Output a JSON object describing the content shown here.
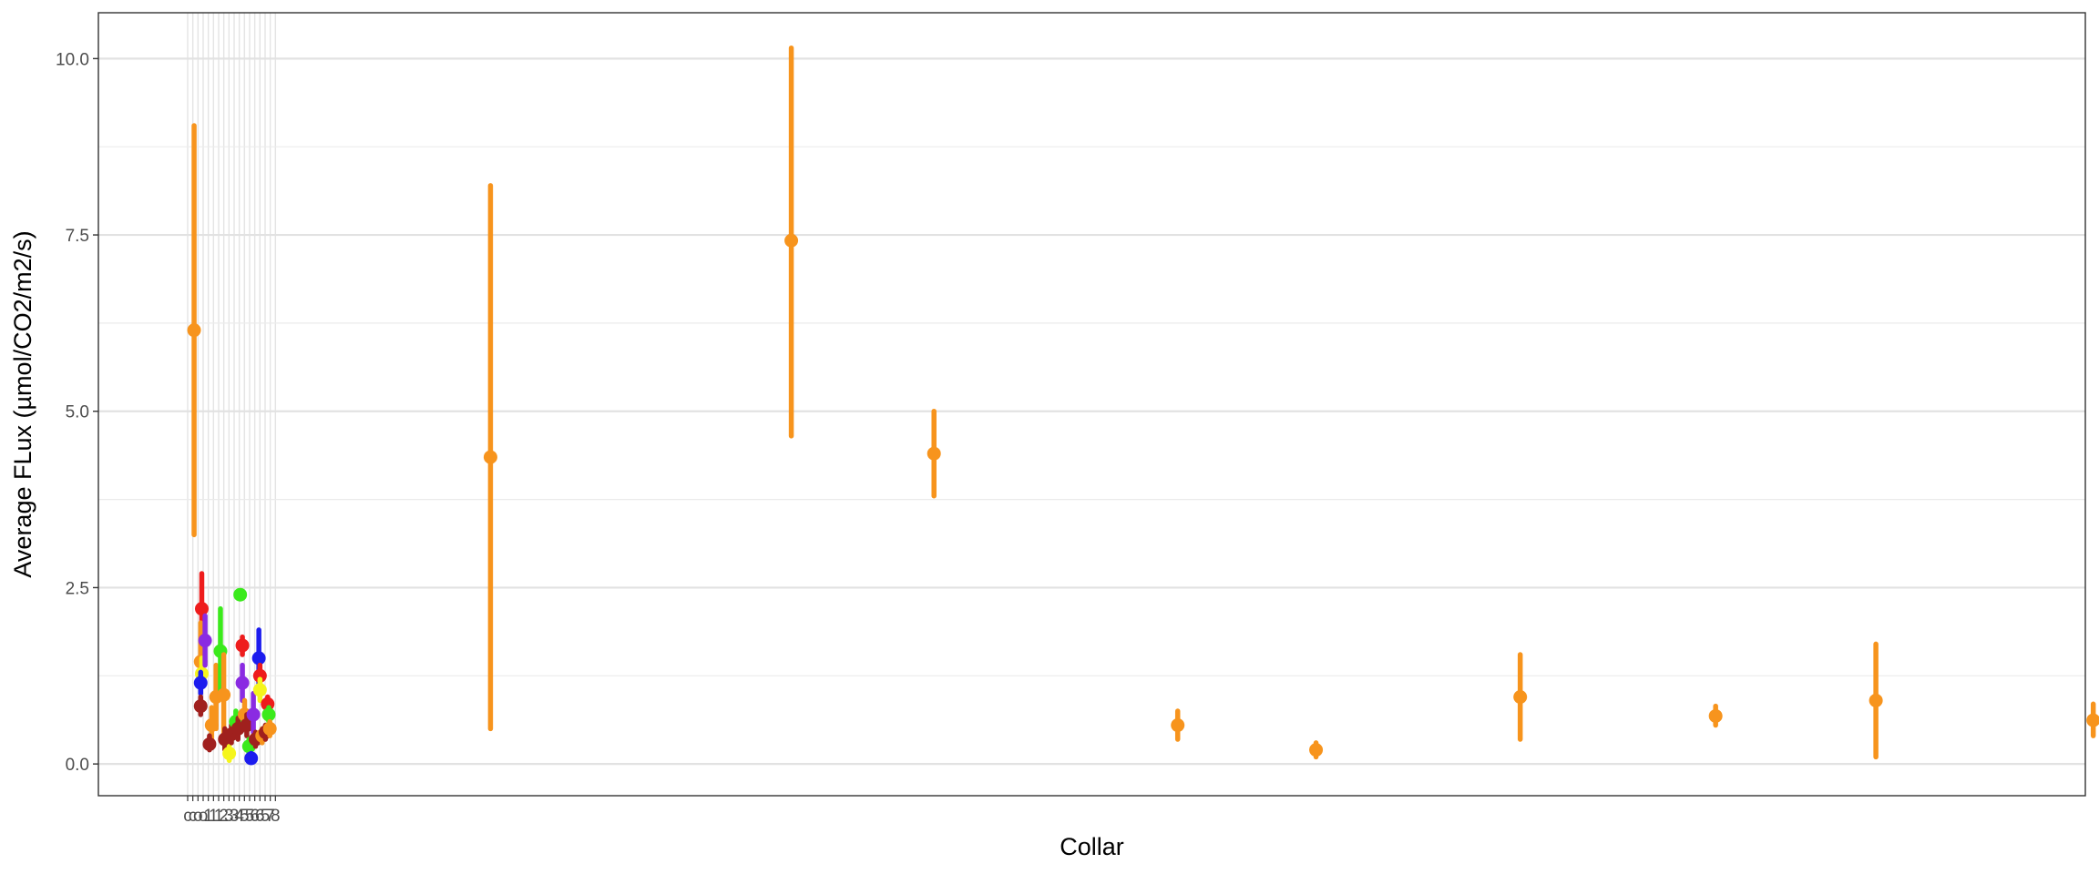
{
  "chart_data": {
    "type": "scatter",
    "title": "",
    "xlabel": "Collar",
    "ylabel": "Average FLux (µmol/CO2/m2/s)",
    "ylim": [
      -0.45,
      10.65
    ],
    "y_ticks": [
      0,
      2.5,
      5,
      7.5,
      10
    ],
    "y_tick_labels": [
      "0.0",
      "2.5",
      "5.0",
      "7.5",
      "10.0"
    ],
    "grid": true,
    "legend": "none",
    "x_tick_labels": [
      "c",
      "c",
      "o",
      "o",
      "1",
      "1",
      "1",
      "2",
      "3",
      "3",
      "4",
      "5",
      "5",
      "6",
      "6",
      "5",
      "7",
      "8"
    ],
    "colors": {
      "orange": "#F7941D",
      "red": "#EE1C1C",
      "purple": "#8A2BE2",
      "green": "#3BEA1C",
      "blue": "#1C1CEE",
      "yellow": "#F5F51C",
      "brown": "#A0201E"
    },
    "points": [
      {
        "x": 0.5,
        "y": 6.15,
        "lo": 3.25,
        "hi": 9.05,
        "color": "orange"
      },
      {
        "x": 14,
        "y": 4.35,
        "lo": 0.5,
        "hi": 8.2,
        "color": "orange"
      },
      {
        "x": 27.7,
        "y": 7.42,
        "lo": 4.65,
        "hi": 10.15,
        "color": "orange"
      },
      {
        "x": 34.2,
        "y": 4.4,
        "lo": 3.8,
        "hi": 5.0,
        "color": "orange"
      },
      {
        "x": 45.3,
        "y": 0.55,
        "lo": 0.35,
        "hi": 0.75,
        "color": "orange"
      },
      {
        "x": 51.6,
        "y": 0.2,
        "lo": 0.1,
        "hi": 0.3,
        "color": "orange"
      },
      {
        "x": 60.9,
        "y": 0.95,
        "lo": 0.35,
        "hi": 1.55,
        "color": "orange"
      },
      {
        "x": 69.8,
        "y": 0.68,
        "lo": 0.55,
        "hi": 0.82,
        "color": "orange"
      },
      {
        "x": 77.1,
        "y": 0.9,
        "lo": 0.1,
        "hi": 1.7,
        "color": "orange"
      },
      {
        "x": 87.0,
        "y": 0.62,
        "lo": 0.4,
        "hi": 0.85,
        "color": "orange"
      },
      {
        "x": 0.85,
        "y": 2.2,
        "lo": 1.7,
        "hi": 2.7,
        "color": "red"
      },
      {
        "x": 0.8,
        "y": 1.45,
        "lo": 1.1,
        "hi": 2.0,
        "color": "orange"
      },
      {
        "x": 0.85,
        "y": 1.28,
        "lo": 1.1,
        "hi": 1.5,
        "color": "yellow"
      },
      {
        "x": 0.8,
        "y": 1.15,
        "lo": 1.0,
        "hi": 1.3,
        "color": "blue"
      },
      {
        "x": 0.8,
        "y": 0.82,
        "lo": 0.7,
        "hi": 0.95,
        "color": "brown"
      },
      {
        "x": 1.0,
        "y": 1.75,
        "lo": 1.4,
        "hi": 2.1,
        "color": "purple"
      },
      {
        "x": 1.3,
        "y": 0.55,
        "lo": 0.3,
        "hi": 0.8,
        "color": "orange"
      },
      {
        "x": 1.5,
        "y": 0.95,
        "lo": 0.5,
        "hi": 1.4,
        "color": "orange"
      },
      {
        "x": 1.2,
        "y": 0.28,
        "lo": 0.2,
        "hi": 0.4,
        "color": "brown"
      },
      {
        "x": 1.7,
        "y": 1.6,
        "lo": 1.0,
        "hi": 2.2,
        "color": "green"
      },
      {
        "x": 1.85,
        "y": 0.98,
        "lo": 0.4,
        "hi": 1.55,
        "color": "orange"
      },
      {
        "x": 1.9,
        "y": 0.35,
        "lo": 0.2,
        "hi": 0.5,
        "color": "brown"
      },
      {
        "x": 2.1,
        "y": 0.15,
        "lo": 0.05,
        "hi": 0.25,
        "color": "yellow"
      },
      {
        "x": 2.2,
        "y": 0.42,
        "lo": 0.3,
        "hi": 0.55,
        "color": "brown"
      },
      {
        "x": 2.4,
        "y": 0.6,
        "lo": 0.45,
        "hi": 0.75,
        "color": "green"
      },
      {
        "x": 2.5,
        "y": 0.5,
        "lo": 0.35,
        "hi": 0.65,
        "color": "brown"
      },
      {
        "x": 2.6,
        "y": 2.4,
        "lo": 2.4,
        "hi": 2.4,
        "color": "green"
      },
      {
        "x": 2.7,
        "y": 1.68,
        "lo": 1.55,
        "hi": 1.8,
        "color": "red"
      },
      {
        "x": 2.7,
        "y": 1.15,
        "lo": 0.9,
        "hi": 1.4,
        "color": "purple"
      },
      {
        "x": 2.8,
        "y": 0.7,
        "lo": 0.5,
        "hi": 0.9,
        "color": "orange"
      },
      {
        "x": 2.9,
        "y": 0.55,
        "lo": 0.4,
        "hi": 0.7,
        "color": "brown"
      },
      {
        "x": 3.0,
        "y": 0.25,
        "lo": 0.15,
        "hi": 0.35,
        "color": "green"
      },
      {
        "x": 3.1,
        "y": 0.08,
        "lo": 0.02,
        "hi": 0.15,
        "color": "blue"
      },
      {
        "x": 3.2,
        "y": 0.7,
        "lo": 0.45,
        "hi": 1.0,
        "color": "purple"
      },
      {
        "x": 3.3,
        "y": 0.35,
        "lo": 0.25,
        "hi": 0.45,
        "color": "brown"
      },
      {
        "x": 3.45,
        "y": 1.5,
        "lo": 1.1,
        "hi": 1.9,
        "color": "blue"
      },
      {
        "x": 3.5,
        "y": 1.25,
        "lo": 1.1,
        "hi": 1.4,
        "color": "red"
      },
      {
        "x": 3.5,
        "y": 1.05,
        "lo": 0.9,
        "hi": 1.2,
        "color": "yellow"
      },
      {
        "x": 3.6,
        "y": 0.4,
        "lo": 0.3,
        "hi": 0.5,
        "color": "orange"
      },
      {
        "x": 3.75,
        "y": 0.45,
        "lo": 0.35,
        "hi": 0.55,
        "color": "brown"
      },
      {
        "x": 3.85,
        "y": 0.85,
        "lo": 0.7,
        "hi": 0.95,
        "color": "red"
      },
      {
        "x": 3.9,
        "y": 0.7,
        "lo": 0.6,
        "hi": 0.8,
        "color": "green"
      },
      {
        "x": 3.95,
        "y": 0.5,
        "lo": 0.4,
        "hi": 0.6,
        "color": "orange"
      }
    ]
  }
}
